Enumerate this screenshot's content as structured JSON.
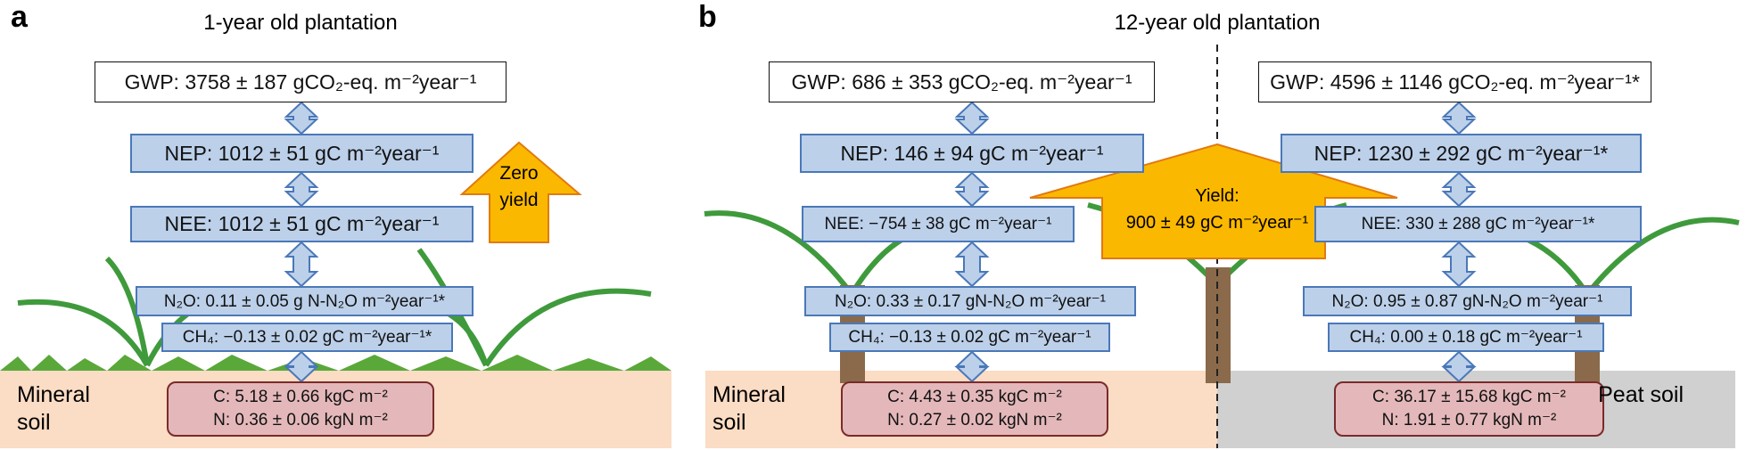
{
  "panels": [
    {
      "label": "a",
      "title": "1-year old plantation",
      "arrow": [
        "Zero",
        "yield"
      ],
      "sites": [
        {
          "gwp": "GWP: 3758 ± 187 gCO₂-eq. m⁻²year⁻¹",
          "nep": "NEP: 1012 ± 51 gC m⁻²year⁻¹",
          "nee": "NEE: 1012 ± 51 gC m⁻²year⁻¹",
          "n2o": "N₂O: 0.11 ± 0.05 g N-N₂O m⁻²year⁻¹*",
          "ch4": "CH₄: −0.13 ± 0.02 gC m⁻²year⁻¹*",
          "soil": "Mineral soil",
          "c": "C: 5.18 ± 0.66 kgC m⁻²",
          "n": "N: 0.36 ± 0.06 kgN m⁻²"
        }
      ]
    },
    {
      "label": "b",
      "title": "12-year old plantation",
      "arrow": [
        "Yield:",
        "900 ± 49 gC m⁻²year⁻¹"
      ],
      "sites": [
        {
          "gwp": "GWP: 686 ± 353 gCO₂-eq. m⁻²year⁻¹",
          "nep": "NEP: 146 ± 94 gC m⁻²year⁻¹",
          "nee": "NEE: −754 ± 38 gC m⁻²year⁻¹",
          "n2o": "N₂O: 0.33 ± 0.17 gN-N₂O m⁻²year⁻¹",
          "ch4": "CH₄: −0.13 ± 0.02 gC m⁻²year⁻¹",
          "soil": "Mineral soil",
          "c": "C: 4.43 ± 0.35 kgC m⁻²",
          "n": "N: 0.27 ± 0.02 kgN m⁻²"
        },
        {
          "gwp": "GWP: 4596 ± 1146 gCO₂-eq. m⁻²year⁻¹*",
          "nep": "NEP: 1230 ± 292 gC m⁻²year⁻¹*",
          "nee": "NEE: 330 ± 288 gC m⁻²year⁻¹*",
          "n2o": "N₂O: 0.95 ± 0.87 gN-N₂O m⁻²year⁻¹",
          "ch4": "CH₄: 0.00 ± 0.18 gC m⁻²year⁻¹",
          "soil": "Peat soil",
          "c": "C: 36.17 ± 15.68 kgC m⁻²",
          "n": "N: 1.91 ± 0.77 kgN m⁻²"
        }
      ]
    }
  ]
}
